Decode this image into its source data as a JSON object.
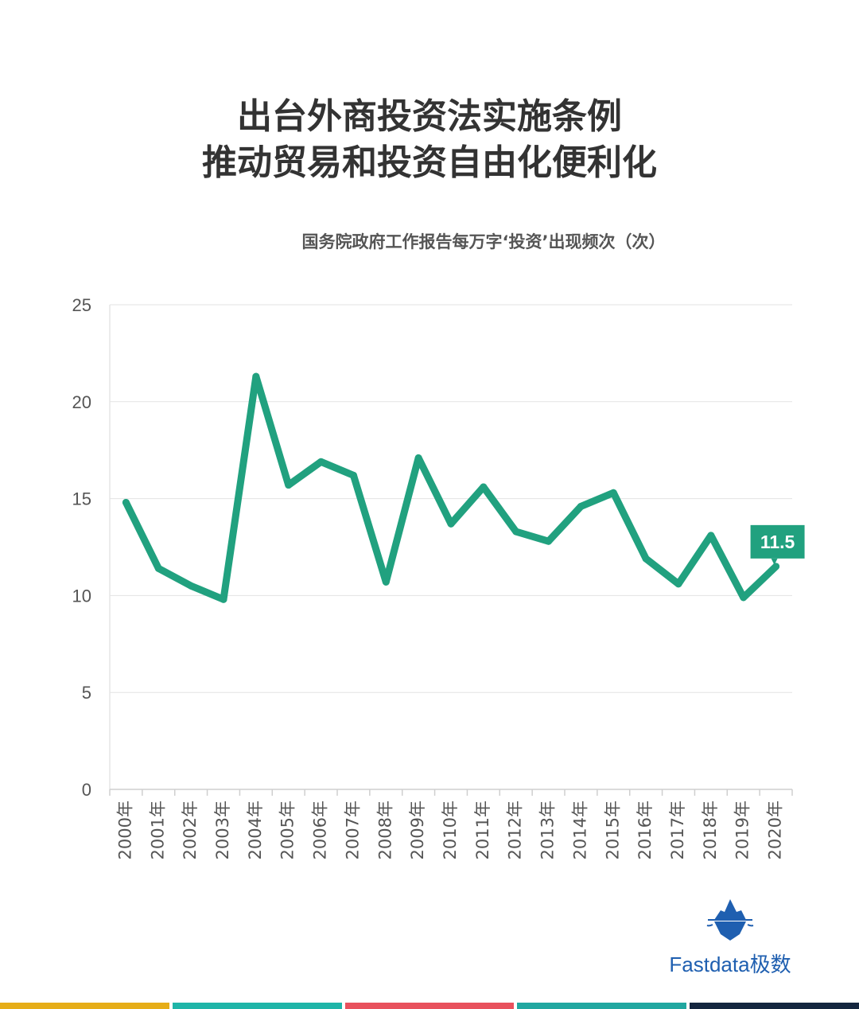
{
  "title_lines": [
    "出台外商投资法实施条例",
    "推动贸易和投资自由化便利化"
  ],
  "subtitle": "国务院政府工作报告每万字‘投资’出现频次（次）",
  "chart_data": {
    "type": "line",
    "categories": [
      "2000年",
      "2001年",
      "2002年",
      "2003年",
      "2004年",
      "2005年",
      "2006年",
      "2007年",
      "2008年",
      "2009年",
      "2010年",
      "2011年",
      "2012年",
      "2013年",
      "2014年",
      "2015年",
      "2016年",
      "2017年",
      "2018年",
      "2019年",
      "2020年"
    ],
    "values": [
      14.8,
      11.4,
      10.5,
      9.8,
      21.3,
      15.7,
      16.9,
      16.2,
      10.7,
      17.1,
      13.7,
      15.6,
      13.3,
      12.8,
      14.6,
      15.3,
      11.9,
      10.6,
      13.1,
      9.9,
      11.5
    ],
    "yticks": [
      0,
      5,
      10,
      15,
      20,
      25
    ],
    "ylim": [
      0,
      25
    ],
    "annotation": {
      "label": "11.5",
      "index": 20
    },
    "line_color": "#21a17f",
    "grid": true
  },
  "brand": {
    "name": "Fastdata极数",
    "icon": "iceberg-logo-icon",
    "color": "#1f5fb0"
  },
  "footer_colors": [
    "#e6ad18",
    "#1fb5a8",
    "#e8515d",
    "#21a7a0",
    "#14263f"
  ]
}
